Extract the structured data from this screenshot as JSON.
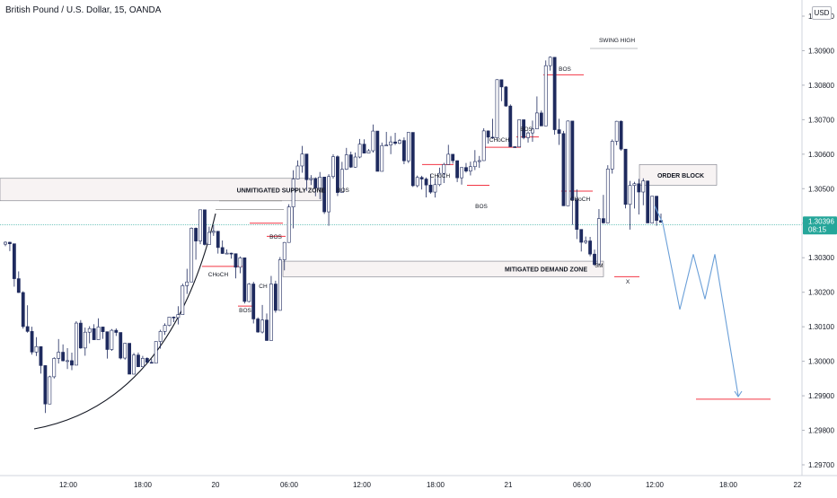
{
  "header": {
    "title": "British Pound / U.S. Dollar, 15, OANDA",
    "currency": "USD"
  },
  "price_badge": {
    "price": "1.30396",
    "countdown": "08:15"
  },
  "colors": {
    "bull_body": "#ffffff",
    "bear_body": "#1e2a5e",
    "candle_outline": "#1e2a5e",
    "price_line": "#26a69a",
    "badge_bg": "#26a69a",
    "level_red": "#f23645",
    "projection": "#6a9fd8",
    "zone_border": "#787b86",
    "zone_fill": "#f7f3f3"
  },
  "annotations": [
    {
      "text": "SWING HIGH"
    },
    {
      "text": "BOS"
    },
    {
      "text": "CHoCH"
    },
    {
      "text": "BOS"
    },
    {
      "text": "CHoCH"
    },
    {
      "text": "BOS"
    },
    {
      "text": "CHoCH"
    },
    {
      "text": "BOS"
    },
    {
      "text": "CHoCH"
    },
    {
      "text": "BOS"
    },
    {
      "text": "CH"
    },
    {
      "text": "BOS"
    },
    {
      "text": "5M"
    },
    {
      "text": "X"
    }
  ],
  "zones": [
    {
      "label": "UNMITIGATED SUPPLY ZONE",
      "top": 1.3053,
      "bottom": 1.30465
    },
    {
      "label": "MITIGATED DEMAND ZONE",
      "top": 1.3029,
      "bottom": 1.30245
    },
    {
      "label": "ORDER BLOCK",
      "top": 1.3057,
      "bottom": 1.3051
    }
  ],
  "chart_data": {
    "type": "candlestick",
    "title": "British Pound / U.S. Dollar, 15, OANDA",
    "ylim": [
      1.2968,
      1.3102
    ],
    "y_ticks": [
      "1.29700",
      "1.29800",
      "1.29900",
      "1.30000",
      "1.30100",
      "1.30200",
      "1.30300",
      "1.30400",
      "1.30500",
      "1.30600",
      "1.30700",
      "1.30800",
      "1.30900",
      "1.31000"
    ],
    "y_tick_values": [
      1.297,
      1.298,
      1.299,
      1.3,
      1.301,
      1.302,
      1.303,
      1.304,
      1.305,
      1.306,
      1.307,
      1.308,
      1.309,
      1.31
    ],
    "x_ticks": [
      "12:00",
      "18:00",
      "20",
      "06:00",
      "12:00",
      "18:00",
      "21",
      "06:00",
      "12:00",
      "18:00",
      "22"
    ],
    "current_price": 1.30396,
    "path_points": [
      [
        1.303,
        1.3038
      ],
      [
        1.3019,
        1.3031
      ],
      [
        1.3008,
        1.3021
      ],
      [
        1.2996,
        1.3011
      ],
      [
        1.2982,
        1.2999
      ],
      [
        1.2992,
        1.3002
      ],
      [
        1.2997,
        1.3011
      ],
      [
        1.2994,
        1.3009
      ],
      [
        1.3001,
        1.3013
      ],
      [
        1.3,
        1.3011
      ],
      [
        1.3006,
        1.3016
      ],
      [
        1.2999,
        1.3009
      ],
      [
        1.3002,
        1.301
      ],
      [
        1.3,
        1.3006
      ],
      [
        1.2996,
        1.3003
      ],
      [
        1.2998,
        1.3006
      ],
      [
        1.2999,
        1.3004
      ],
      [
        1.3002,
        1.3011
      ],
      [
        1.3004,
        1.3014
      ],
      [
        1.3009,
        1.3021
      ],
      [
        1.3016,
        1.303
      ],
      [
        1.3025,
        1.3039
      ],
      [
        1.3033,
        1.3044
      ],
      [
        1.3035,
        1.3041
      ],
      [
        1.303,
        1.3038
      ],
      [
        1.3025,
        1.3037
      ],
      [
        1.302,
        1.3031
      ],
      [
        1.3015,
        1.3028
      ],
      [
        1.3008,
        1.3025
      ],
      [
        1.3002,
        1.302
      ],
      [
        1.301,
        1.3027
      ],
      [
        1.3024,
        1.3035
      ],
      [
        1.3034,
        1.306
      ],
      [
        1.3052,
        1.3065
      ],
      [
        1.3045,
        1.3058
      ],
      [
        1.304,
        1.3058
      ],
      [
        1.3036,
        1.3055
      ],
      [
        1.3042,
        1.3062
      ],
      [
        1.305,
        1.3066
      ],
      [
        1.3055,
        1.3063
      ],
      [
        1.3053,
        1.3068
      ],
      [
        1.306,
        1.307
      ],
      [
        1.3055,
        1.3065
      ],
      [
        1.3058,
        1.3073
      ],
      [
        1.3062,
        1.307
      ],
      [
        1.3055,
        1.3067
      ],
      [
        1.3049,
        1.3062
      ],
      [
        1.3043,
        1.3055
      ],
      [
        1.3046,
        1.3058
      ],
      [
        1.3048,
        1.3061
      ],
      [
        1.3055,
        1.3066
      ],
      [
        1.3049,
        1.3062
      ],
      [
        1.3046,
        1.3059
      ],
      [
        1.3054,
        1.3064
      ],
      [
        1.3058,
        1.3069
      ],
      [
        1.3063,
        1.3082
      ],
      [
        1.307,
        1.308
      ],
      [
        1.3062,
        1.3075
      ],
      [
        1.3058,
        1.307
      ],
      [
        1.306,
        1.3073
      ],
      [
        1.3068,
        1.3081
      ],
      [
        1.3072,
        1.309
      ],
      [
        1.306,
        1.3084
      ],
      [
        1.3045,
        1.307
      ],
      [
        1.3032,
        1.3053
      ],
      [
        1.3027,
        1.3037
      ],
      [
        1.3024,
        1.304
      ],
      [
        1.3038,
        1.3058
      ],
      [
        1.3052,
        1.3075
      ],
      [
        1.306,
        1.307
      ],
      [
        1.303,
        1.3062
      ],
      [
        1.3034,
        1.3054
      ],
      [
        1.304,
        1.3054
      ],
      [
        1.3038,
        1.3048
      ],
      [
        1.3039,
        1.3045
      ]
    ],
    "projection": [
      1.3045,
      1.304,
      1.3015,
      1.3031,
      1.3018,
      1.3031,
      1.299
    ]
  }
}
